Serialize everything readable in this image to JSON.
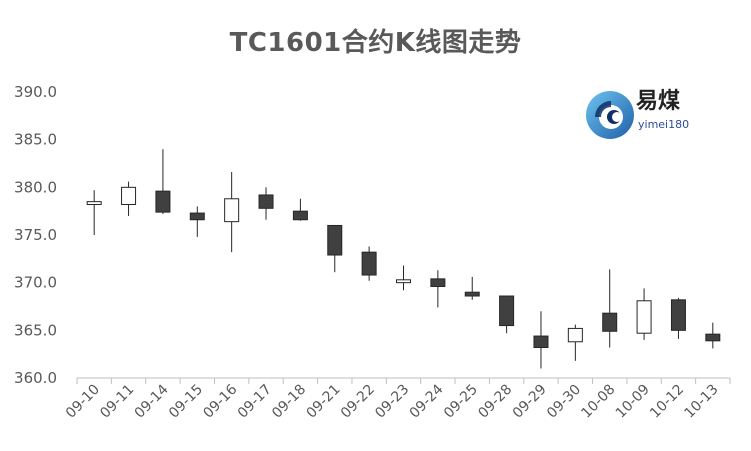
{
  "chart_data": {
    "type": "candlestick",
    "title": "TC1601合约K线图走势",
    "xlabel": "",
    "ylabel": "",
    "ylim": [
      360,
      390
    ],
    "yticks": [
      "360.0",
      "365.0",
      "370.0",
      "375.0",
      "380.0",
      "385.0",
      "390.0"
    ],
    "grid": false,
    "legend": "none",
    "categories": [
      "09-10",
      "09-11",
      "09-14",
      "09-15",
      "09-16",
      "09-17",
      "09-18",
      "09-21",
      "09-22",
      "09-23",
      "09-24",
      "09-25",
      "09-28",
      "09-29",
      "09-30",
      "10-08",
      "10-09",
      "10-12",
      "10-13"
    ],
    "open": [
      378.2,
      378.2,
      379.6,
      377.3,
      376.4,
      379.2,
      377.5,
      376.0,
      373.2,
      370.0,
      370.4,
      369.0,
      368.6,
      364.4,
      363.8,
      366.8,
      364.7,
      368.2,
      364.6
    ],
    "high": [
      379.7,
      380.6,
      384.0,
      378.0,
      381.6,
      380.0,
      378.8,
      376.0,
      373.8,
      371.8,
      371.3,
      370.6,
      368.6,
      367.0,
      365.6,
      371.4,
      369.4,
      368.4,
      365.8
    ],
    "low": [
      375.0,
      377.0,
      377.2,
      374.8,
      373.2,
      376.6,
      376.5,
      371.1,
      370.2,
      369.2,
      367.4,
      368.2,
      364.7,
      361.0,
      361.8,
      363.2,
      364.0,
      364.1,
      363.1
    ],
    "close": [
      378.5,
      380.0,
      377.4,
      376.6,
      378.8,
      377.8,
      376.6,
      372.9,
      370.8,
      370.3,
      369.6,
      368.6,
      365.5,
      363.2,
      365.2,
      364.9,
      368.1,
      365.0,
      363.9
    ]
  },
  "colors": {
    "axis": "#bfbfbf",
    "text": "#595959",
    "down_fill": "#404040",
    "up_fill": "#ffffff",
    "candle_line": "#262626"
  },
  "watermark": {
    "brand": "易煤",
    "domain": "yimei180",
    "icon": "yimei-logo-icon"
  }
}
